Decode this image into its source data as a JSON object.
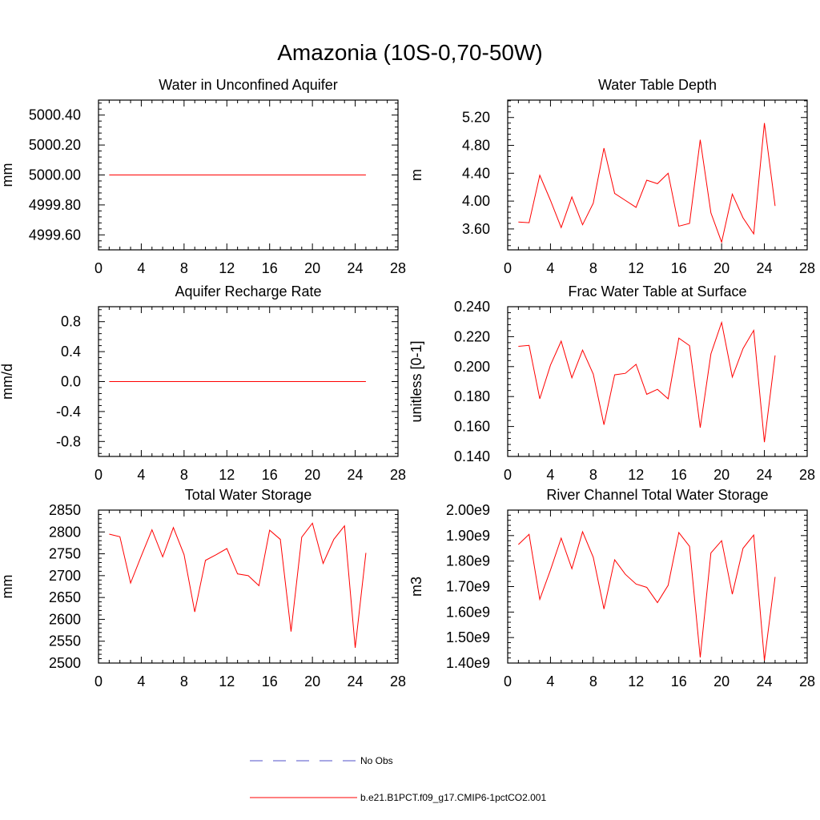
{
  "title": "Amazonia (10S-0,70-50W)",
  "colors": {
    "model": "#ff0000",
    "obs": "#5050c8",
    "axis": "#000000"
  },
  "legend": {
    "obs_label": "No Obs",
    "model_label": "b.e21.B1PCT.f09_g17.CMIP6-1pctCO2.001"
  },
  "chart_data": [
    {
      "type": "line",
      "title": "Water in Unconfined Aquifer",
      "ylabel": "mm",
      "xlim": [
        0,
        28
      ],
      "ylim": [
        4999.5,
        5000.5
      ],
      "xticks": [
        0,
        4,
        8,
        12,
        16,
        20,
        24,
        28
      ],
      "yticks": [
        4999.6,
        4999.8,
        5000.0,
        5000.2,
        5000.4
      ],
      "yticklabels": [
        "4999.60",
        "4999.80",
        "5000.00",
        "5000.20",
        "5000.40"
      ],
      "x": [
        1,
        2,
        3,
        4,
        5,
        6,
        7,
        8,
        9,
        10,
        11,
        12,
        13,
        14,
        15,
        16,
        17,
        18,
        19,
        20,
        21,
        22,
        23,
        24,
        25
      ],
      "series": [
        {
          "values": [
            5000,
            5000,
            5000,
            5000,
            5000,
            5000,
            5000,
            5000,
            5000,
            5000,
            5000,
            5000,
            5000,
            5000,
            5000,
            5000,
            5000,
            5000,
            5000,
            5000,
            5000,
            5000,
            5000,
            5000,
            5000
          ]
        }
      ]
    },
    {
      "type": "line",
      "title": "Water Table Depth",
      "ylabel": "m",
      "xlim": [
        0,
        28
      ],
      "ylim": [
        3.3,
        5.45
      ],
      "xticks": [
        0,
        4,
        8,
        12,
        16,
        20,
        24,
        28
      ],
      "yticks": [
        3.6,
        4.0,
        4.4,
        4.8,
        5.2
      ],
      "yticklabels": [
        "3.60",
        "4.00",
        "4.40",
        "4.80",
        "5.20"
      ],
      "x": [
        1,
        2,
        3,
        4,
        5,
        6,
        7,
        8,
        9,
        10,
        11,
        12,
        13,
        14,
        15,
        16,
        17,
        18,
        19,
        20,
        21,
        22,
        23,
        24,
        25
      ],
      "series": [
        {
          "values": [
            3.7,
            3.69,
            4.37,
            4.01,
            3.62,
            4.06,
            3.66,
            3.97,
            4.76,
            4.11,
            4.01,
            3.91,
            4.3,
            4.25,
            4.4,
            3.64,
            3.68,
            4.88,
            3.83,
            3.41,
            4.1,
            3.76,
            3.53,
            5.12,
            3.93
          ]
        }
      ]
    },
    {
      "type": "line",
      "title": "Aquifer Recharge Rate",
      "ylabel": "mm/d",
      "xlim": [
        0,
        28
      ],
      "ylim": [
        -1.0,
        1.0
      ],
      "xticks": [
        0,
        4,
        8,
        12,
        16,
        20,
        24,
        28
      ],
      "yticks": [
        -0.8,
        -0.4,
        0.0,
        0.4,
        0.8
      ],
      "yticklabels": [
        "-0.8",
        "-0.4",
        "0.0",
        "0.4",
        "0.8"
      ],
      "x": [
        1,
        2,
        3,
        4,
        5,
        6,
        7,
        8,
        9,
        10,
        11,
        12,
        13,
        14,
        15,
        16,
        17,
        18,
        19,
        20,
        21,
        22,
        23,
        24,
        25
      ],
      "series": [
        {
          "values": [
            0,
            0,
            0,
            0,
            0,
            0,
            0,
            0,
            0,
            0,
            0,
            0,
            0,
            0,
            0,
            0,
            0,
            0,
            0,
            0,
            0,
            0,
            0,
            0,
            0
          ]
        }
      ]
    },
    {
      "type": "line",
      "title": "Frac Water Table at Surface",
      "ylabel": "unitless [0-1]",
      "xlim": [
        0,
        28
      ],
      "ylim": [
        0.14,
        0.24
      ],
      "xticks": [
        0,
        4,
        8,
        12,
        16,
        20,
        24,
        28
      ],
      "yticks": [
        0.14,
        0.16,
        0.18,
        0.2,
        0.22,
        0.24
      ],
      "yticklabels": [
        "0.140",
        "0.160",
        "0.180",
        "0.200",
        "0.220",
        "0.240"
      ],
      "x": [
        1,
        2,
        3,
        4,
        5,
        6,
        7,
        8,
        9,
        10,
        11,
        12,
        13,
        14,
        15,
        16,
        17,
        18,
        19,
        20,
        21,
        22,
        23,
        24,
        25
      ],
      "series": [
        {
          "values": [
            0.2135,
            0.2142,
            0.1785,
            0.201,
            0.217,
            0.1925,
            0.211,
            0.195,
            0.1612,
            0.1945,
            0.1955,
            0.2015,
            0.1815,
            0.1848,
            0.1785,
            0.219,
            0.214,
            0.1592,
            0.2085,
            0.2295,
            0.193,
            0.212,
            0.2242,
            0.1495,
            0.2075
          ]
        }
      ]
    },
    {
      "type": "line",
      "title": "Total Water Storage",
      "ylabel": "mm",
      "xlim": [
        0,
        28
      ],
      "ylim": [
        2500,
        2850
      ],
      "xticks": [
        0,
        4,
        8,
        12,
        16,
        20,
        24,
        28
      ],
      "yticks": [
        2500,
        2550,
        2600,
        2650,
        2700,
        2750,
        2800,
        2850
      ],
      "yticklabels": [
        "2500",
        "2550",
        "2600",
        "2650",
        "2700",
        "2750",
        "2800",
        "2850"
      ],
      "x": [
        1,
        2,
        3,
        4,
        5,
        6,
        7,
        8,
        9,
        10,
        11,
        12,
        13,
        14,
        15,
        16,
        17,
        18,
        19,
        20,
        21,
        22,
        23,
        24,
        25
      ],
      "series": [
        {
          "values": [
            2795,
            2789,
            2683,
            2745,
            2805,
            2743,
            2810,
            2748,
            2617,
            2735,
            2748,
            2762,
            2704,
            2700,
            2677,
            2804,
            2783,
            2572,
            2788,
            2820,
            2728,
            2783,
            2814,
            2535,
            2752
          ]
        }
      ]
    },
    {
      "type": "line",
      "title": "River Channel Total Water Storage",
      "ylabel": "m3",
      "xlim": [
        0,
        28
      ],
      "ylim": [
        1400000000.0,
        2000000000.0
      ],
      "xticks": [
        0,
        4,
        8,
        12,
        16,
        20,
        24,
        28
      ],
      "yticks": [
        1400000000.0,
        1500000000.0,
        1600000000.0,
        1700000000.0,
        1800000000.0,
        1900000000.0,
        2000000000.0
      ],
      "yticklabels": [
        "1.40e9",
        "1.50e9",
        "1.60e9",
        "1.70e9",
        "1.80e9",
        "1.90e9",
        "2.00e9"
      ],
      "x": [
        1,
        2,
        3,
        4,
        5,
        6,
        7,
        8,
        9,
        10,
        11,
        12,
        13,
        14,
        15,
        16,
        17,
        18,
        19,
        20,
        21,
        22,
        23,
        24,
        25
      ],
      "series": [
        {
          "values": [
            1865000000.0,
            1905000000.0,
            1650000000.0,
            1765000000.0,
            1890000000.0,
            1770000000.0,
            1915000000.0,
            1815000000.0,
            1612000000.0,
            1805000000.0,
            1748000000.0,
            1710000000.0,
            1697000000.0,
            1637000000.0,
            1705000000.0,
            1912000000.0,
            1858000000.0,
            1422000000.0,
            1832000000.0,
            1880000000.0,
            1670000000.0,
            1850000000.0,
            1902000000.0,
            1410000000.0,
            1738000000.0
          ]
        }
      ]
    }
  ]
}
